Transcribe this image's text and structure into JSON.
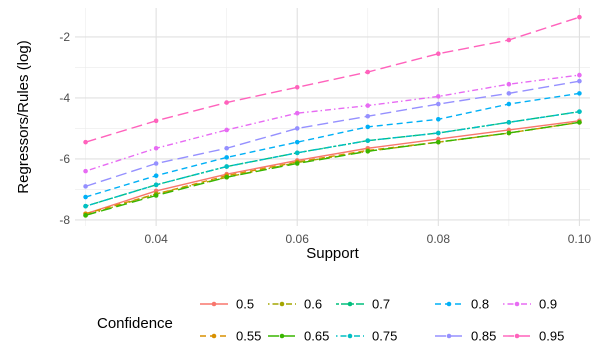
{
  "chart_data": {
    "type": "line",
    "xlabel": "Support",
    "ylabel": "Regressors/Rules (log)",
    "x": [
      0.03,
      0.04,
      0.05,
      0.06,
      0.07,
      0.08,
      0.09,
      0.1
    ],
    "x_ticks": [
      "0.04",
      "0.06",
      "0.08",
      "0.10"
    ],
    "x_tick_values": [
      0.04,
      0.06,
      0.08,
      0.1
    ],
    "y_ticks": [
      "-8",
      "-6",
      "-4",
      "-2"
    ],
    "y_tick_values": [
      -8,
      -6,
      -4,
      -2
    ],
    "xlim": [
      0.0285,
      0.1015
    ],
    "ylim": [
      -8.2,
      -1.05
    ],
    "grid": true,
    "legend_title": "Confidence",
    "legend_position": "bottom",
    "series": [
      {
        "name": "0.5",
        "color": "#F8766D",
        "dash": "solid",
        "values": [
          -7.8,
          -7.05,
          -6.5,
          -6.05,
          -5.65,
          -5.35,
          -5.05,
          -4.75
        ]
      },
      {
        "name": "0.55",
        "color": "#D89000",
        "dash": "dashed",
        "values": [
          -7.8,
          -7.15,
          -6.55,
          -6.1,
          -5.72,
          -5.45,
          -5.15,
          -4.8
        ]
      },
      {
        "name": "0.6",
        "color": "#A3A500",
        "dash": "dotdash",
        "values": [
          -7.85,
          -7.15,
          -6.6,
          -6.12,
          -5.75,
          -5.45,
          -5.15,
          -4.8
        ]
      },
      {
        "name": "0.65",
        "color": "#39B600",
        "dash": "longdash",
        "values": [
          -7.85,
          -7.2,
          -6.6,
          -6.15,
          -5.75,
          -5.45,
          -5.15,
          -4.8
        ]
      },
      {
        "name": "0.7",
        "color": "#00BF7D",
        "dash": "twodash",
        "values": [
          -7.55,
          -6.85,
          -6.25,
          -5.8,
          -5.4,
          -5.15,
          -4.8,
          -4.45
        ]
      },
      {
        "name": "0.75",
        "color": "#00BFC4",
        "dash": "dotdash",
        "values": [
          -7.55,
          -6.85,
          -6.25,
          -5.8,
          -5.4,
          -5.15,
          -4.8,
          -4.45
        ]
      },
      {
        "name": "0.8",
        "color": "#00B0F6",
        "dash": "dashed",
        "values": [
          -7.25,
          -6.55,
          -5.95,
          -5.45,
          -4.95,
          -4.7,
          -4.2,
          -3.85
        ]
      },
      {
        "name": "0.85",
        "color": "#9590FF",
        "dash": "longdash",
        "values": [
          -6.9,
          -6.15,
          -5.65,
          -5.0,
          -4.6,
          -4.2,
          -3.85,
          -3.45
        ]
      },
      {
        "name": "0.9",
        "color": "#E76BF3",
        "dash": "dotdash",
        "values": [
          -6.4,
          -5.65,
          -5.05,
          -4.5,
          -4.25,
          -3.95,
          -3.55,
          -3.25
        ]
      },
      {
        "name": "0.95",
        "color": "#FF62BC",
        "dash": "longdash",
        "values": [
          -5.45,
          -4.75,
          -4.15,
          -3.65,
          -3.15,
          -2.55,
          -2.1,
          -1.35
        ]
      }
    ]
  }
}
